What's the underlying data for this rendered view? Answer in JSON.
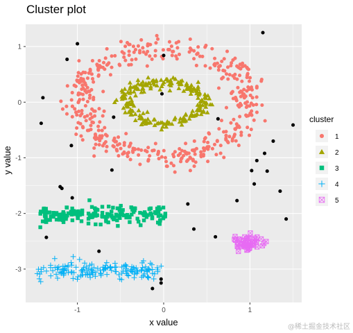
{
  "chart_data": {
    "type": "scatter",
    "title": "Cluster plot",
    "xlabel": "x value",
    "ylabel": "y value",
    "xlim": [
      -1.6,
      1.6
    ],
    "ylim": [
      -3.6,
      1.4
    ],
    "y_ticks": [
      1,
      0,
      -1,
      -2,
      -3
    ],
    "y_tick_labels": [
      "1",
      "0",
      "-1",
      "-2",
      "-3"
    ],
    "x_ticks": [
      -1,
      0,
      1
    ],
    "x_tick_labels": [
      "-1",
      "0",
      "1"
    ],
    "grid": true,
    "legend": {
      "title": "cluster",
      "position": "right"
    },
    "series": [
      {
        "name": "0",
        "shape": "circle",
        "color": "#000000",
        "show_in_legend": false,
        "points": [
          [
            -1.0,
            1.05
          ],
          [
            -1.12,
            0.77
          ],
          [
            0.0,
            0.84
          ],
          [
            -1.4,
            0.08
          ],
          [
            -1.42,
            -0.38
          ],
          [
            -1.07,
            -0.78
          ],
          [
            -0.58,
            -0.27
          ],
          [
            -0.02,
            0.15
          ],
          [
            0.63,
            -0.3
          ],
          [
            1.5,
            -0.41
          ],
          [
            1.15,
            1.25
          ],
          [
            1.27,
            -0.7
          ],
          [
            1.17,
            -0.92
          ],
          [
            1.08,
            -1.05
          ],
          [
            1.2,
            -1.24
          ],
          [
            1.02,
            -1.23
          ],
          [
            1.05,
            -1.47
          ],
          [
            1.35,
            -1.6
          ],
          [
            1.42,
            -2.1
          ],
          [
            -0.6,
            -1.22
          ],
          [
            -1.2,
            -1.52
          ],
          [
            -1.18,
            -1.55
          ],
          [
            -1.06,
            -1.72
          ],
          [
            -1.36,
            -2.43
          ],
          [
            0.28,
            -1.83
          ],
          [
            0.35,
            -2.28
          ],
          [
            0.6,
            -2.42
          ],
          [
            0.85,
            -1.77
          ],
          [
            -0.75,
            -2.68
          ],
          [
            -0.13,
            -3.35
          ],
          [
            -0.03,
            -3.18
          ],
          [
            -0.03,
            -3.25
          ]
        ]
      },
      {
        "name": "1",
        "shape": "circle",
        "color": "#f8766d",
        "show_in_legend": true,
        "ring": {
          "cx": 0,
          "cy": 0,
          "rx": 0.98,
          "ry": 0.98,
          "spread": 0.1,
          "count": 470
        }
      },
      {
        "name": "2",
        "shape": "triangle",
        "color": "#a3a500",
        "show_in_legend": true,
        "ring": {
          "cx": 0,
          "cy": 0,
          "rx": 0.45,
          "ry": 0.38,
          "spread": 0.05,
          "count": 210
        }
      },
      {
        "name": "3",
        "shape": "square",
        "color": "#00bf7d",
        "show_in_legend": true,
        "band": {
          "x0": -1.45,
          "x1": 0.02,
          "y": -2.03,
          "spread": 0.11,
          "count": 180
        }
      },
      {
        "name": "4",
        "shape": "plus",
        "color": "#00b0f6",
        "show_in_legend": true,
        "band": {
          "x0": -1.48,
          "x1": -0.02,
          "y": -3.02,
          "spread": 0.11,
          "count": 160
        }
      },
      {
        "name": "5",
        "shape": "boxed-x",
        "color": "#e76bf3",
        "show_in_legend": true,
        "blob": {
          "cx": 0.97,
          "cy": -2.53,
          "sx": 0.09,
          "sy": 0.07,
          "count": 60
        }
      }
    ]
  },
  "watermark": "@稀土掘金技术社区"
}
